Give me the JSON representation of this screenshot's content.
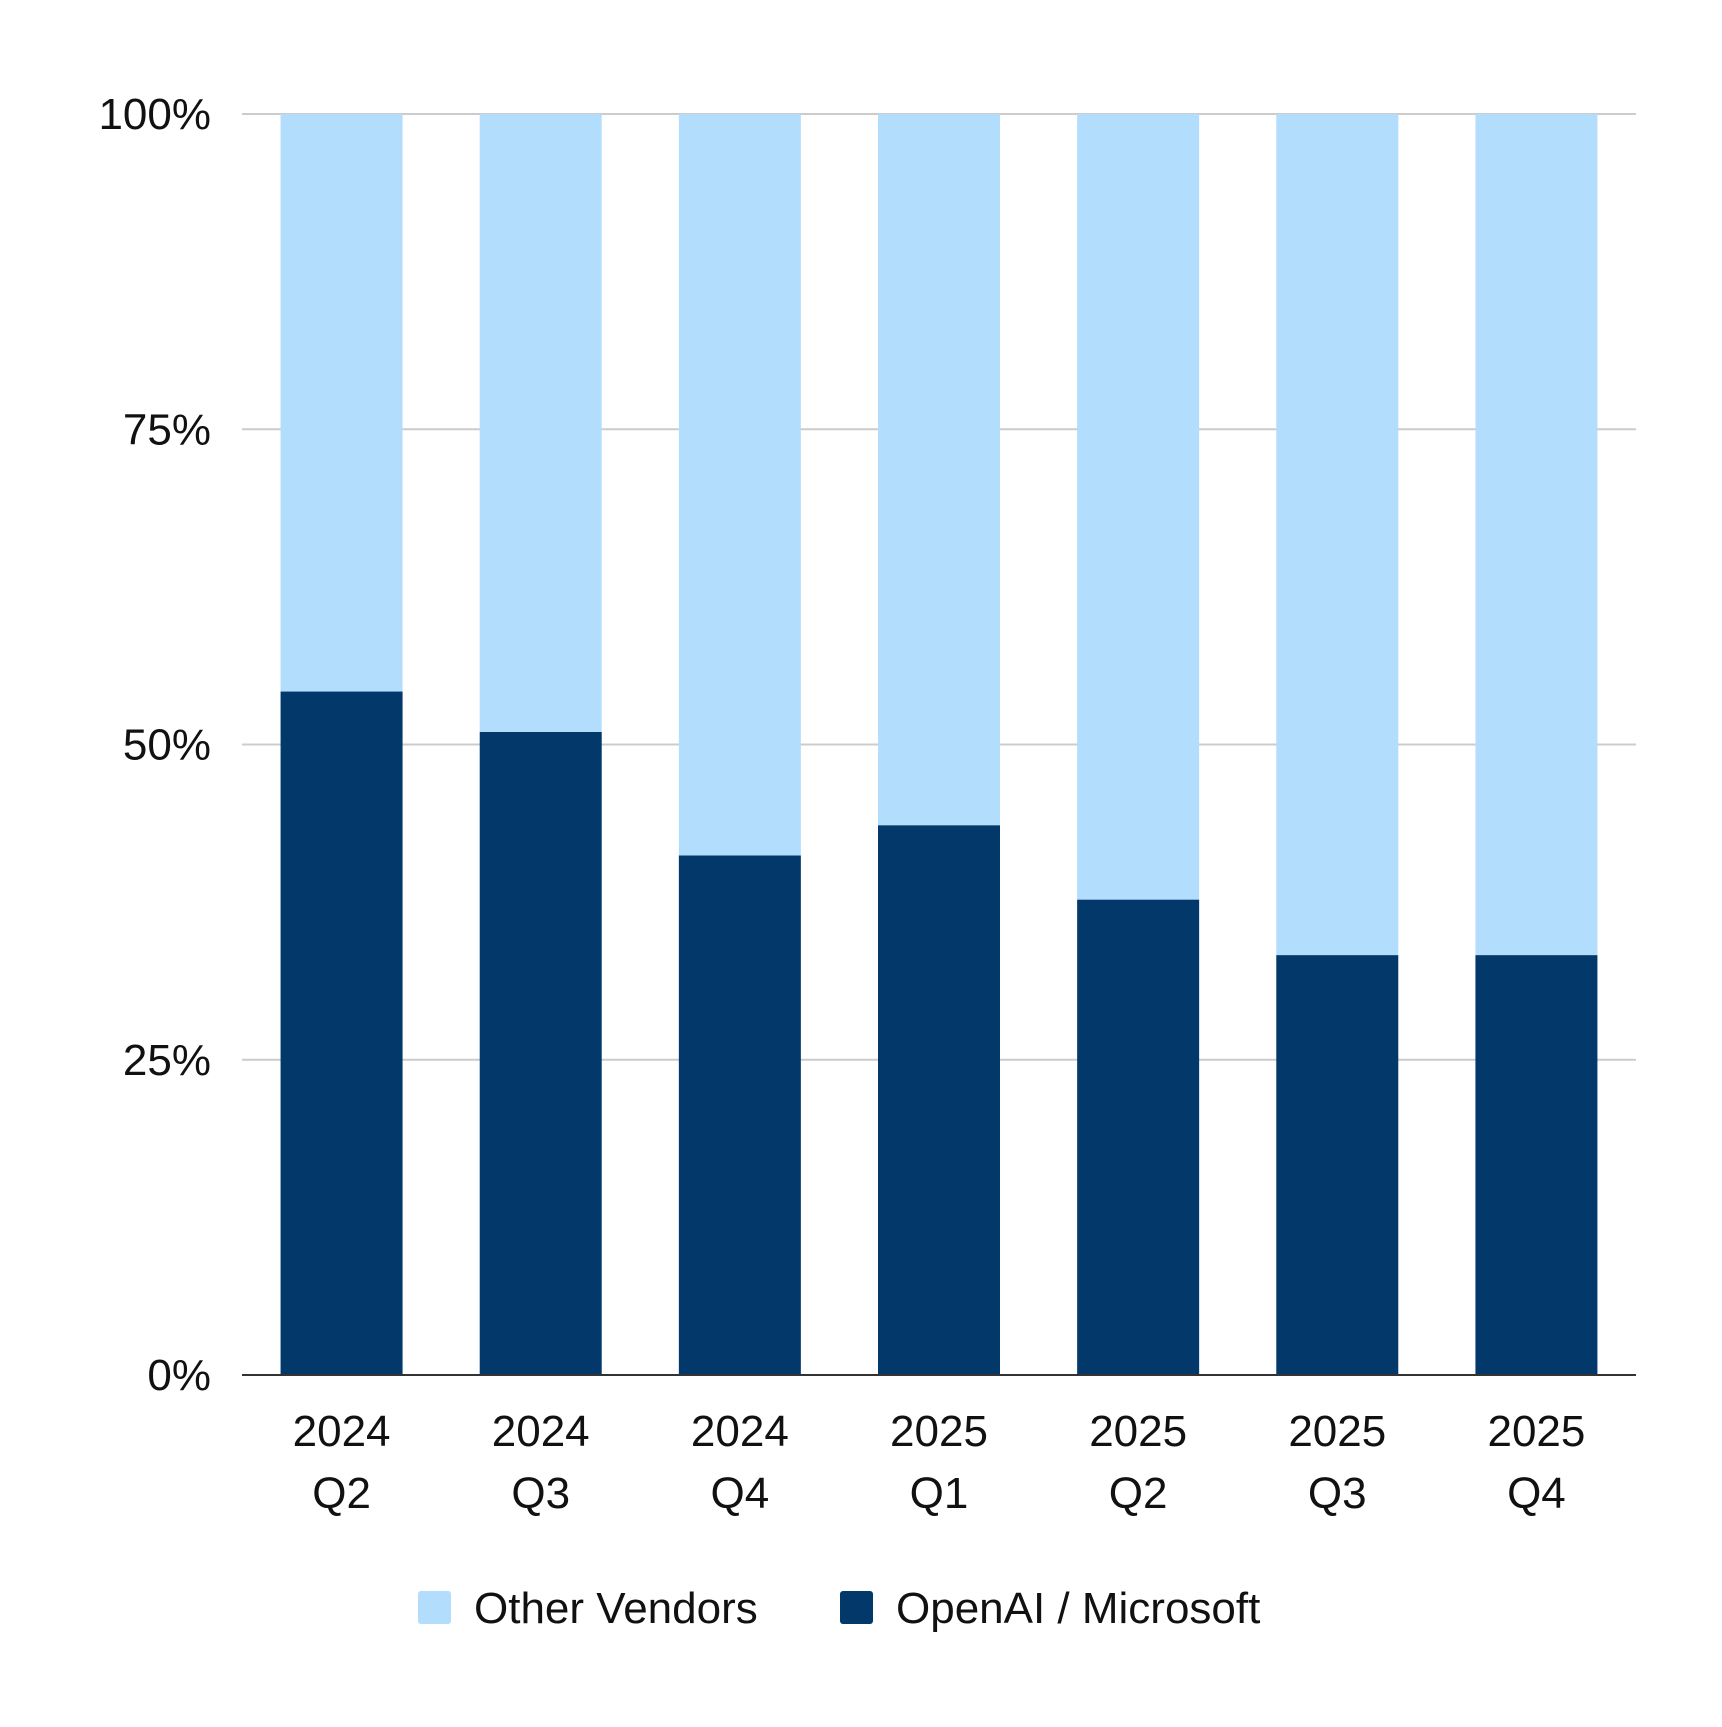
{
  "chart_data": {
    "type": "bar",
    "stacked": true,
    "normalized": true,
    "categories": [
      [
        "2024",
        "Q2"
      ],
      [
        "2024",
        "Q3"
      ],
      [
        "2024",
        "Q4"
      ],
      [
        "2025",
        "Q1"
      ],
      [
        "2025",
        "Q2"
      ],
      [
        "2025",
        "Q3"
      ],
      [
        "2025",
        "Q4"
      ]
    ],
    "series": [
      {
        "name": "OpenAI / Microsoft",
        "color": "#03386A",
        "values": [
          54.2,
          51.0,
          41.2,
          43.6,
          37.7,
          33.3,
          33.3
        ]
      },
      {
        "name": "Other Vendors",
        "color": "#B3DDFD",
        "values": [
          45.8,
          49.0,
          58.8,
          56.4,
          62.3,
          66.7,
          66.7
        ]
      }
    ],
    "yticks": [
      "0%",
      "25%",
      "50%",
      "75%",
      "100%"
    ],
    "ylim": [
      0,
      100
    ],
    "grid": true,
    "legend_position": "bottom",
    "legend": [
      "Other Vendors",
      "OpenAI / Microsoft"
    ]
  }
}
